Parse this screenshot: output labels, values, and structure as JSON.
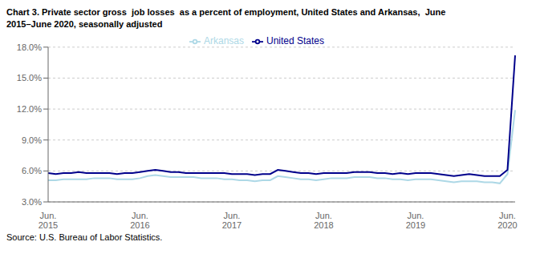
{
  "chart_data": {
    "type": "line",
    "title": "Chart 3. Private sector gross  job losses  as a percent of employment, United States and Arkansas,  June\n2015–June 2020, seasonally adjusted",
    "annotations": [
      "Source: U.S. Bureau of Labor Statistics."
    ],
    "categories": [
      "Jun.\n2015",
      null,
      null,
      null,
      null,
      null,
      null,
      null,
      null,
      null,
      null,
      null,
      "Jun.\n2016",
      null,
      null,
      null,
      null,
      null,
      null,
      null,
      null,
      null,
      null,
      null,
      "Jun.\n2017",
      null,
      null,
      null,
      null,
      null,
      null,
      null,
      null,
      null,
      null,
      null,
      "Jun.\n2018",
      null,
      null,
      null,
      null,
      null,
      null,
      null,
      null,
      null,
      null,
      null,
      "Jun.\n2019",
      null,
      null,
      null,
      null,
      null,
      null,
      null,
      null,
      null,
      null,
      null,
      "Jun.\n2020",
      null
    ],
    "series": [
      {
        "name": "Arkansas",
        "color": "#ADD8E6",
        "values": [
          5.1,
          5.1,
          5.2,
          5.2,
          5.2,
          5.2,
          5.3,
          5.3,
          5.3,
          5.2,
          5.2,
          5.2,
          5.3,
          5.5,
          5.6,
          5.5,
          5.4,
          5.4,
          5.4,
          5.4,
          5.3,
          5.3,
          5.3,
          5.2,
          5.2,
          5.1,
          5.1,
          5.0,
          5.1,
          5.1,
          5.5,
          5.4,
          5.3,
          5.2,
          5.2,
          5.1,
          5.2,
          5.3,
          5.3,
          5.3,
          5.4,
          5.4,
          5.4,
          5.3,
          5.3,
          5.2,
          5.2,
          5.1,
          5.2,
          5.2,
          5.2,
          5.1,
          5.0,
          4.9,
          5.0,
          5.0,
          5.0,
          4.9,
          4.9,
          4.8,
          5.7,
          11.9
        ]
      },
      {
        "name": "United States",
        "color": "#00008B",
        "values": [
          5.8,
          5.7,
          5.8,
          5.8,
          5.9,
          5.8,
          5.8,
          5.8,
          5.8,
          5.7,
          5.8,
          5.8,
          5.9,
          6.0,
          6.1,
          6.0,
          5.9,
          5.9,
          5.8,
          5.8,
          5.8,
          5.8,
          5.8,
          5.8,
          5.7,
          5.7,
          5.7,
          5.6,
          5.7,
          5.7,
          6.1,
          6.0,
          5.9,
          5.8,
          5.8,
          5.7,
          5.8,
          5.8,
          5.8,
          5.8,
          5.9,
          5.9,
          5.9,
          5.8,
          5.8,
          5.7,
          5.8,
          5.7,
          5.8,
          5.8,
          5.8,
          5.7,
          5.6,
          5.5,
          5.6,
          5.7,
          5.6,
          5.5,
          5.5,
          5.5,
          6.1,
          17.2
        ]
      }
    ],
    "ylim": [
      3.0,
      18.0
    ],
    "yticks": [
      {
        "value": 3.0,
        "label": "3.0%"
      },
      {
        "value": 6.0,
        "label": "6.0%"
      },
      {
        "value": 9.0,
        "label": "9.0%"
      },
      {
        "value": 12.0,
        "label": "12.0%"
      },
      {
        "value": 15.0,
        "label": "15.0%"
      },
      {
        "value": 18.0,
        "label": "18.0%"
      }
    ],
    "grid": true,
    "legend": "top"
  }
}
